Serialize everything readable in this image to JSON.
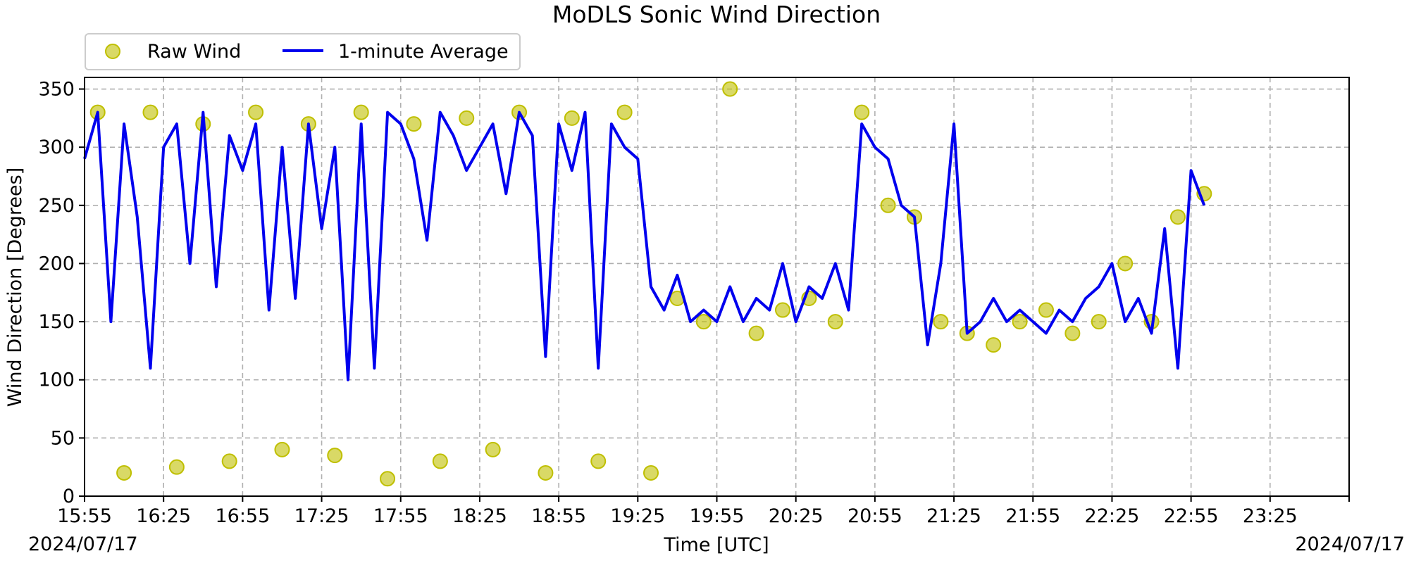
{
  "chart_data": {
    "type": "scatter",
    "title": "MoDLS Sonic Wind Direction",
    "xlabel": "Time [UTC]",
    "ylabel": "Wind Direction [Degrees]",
    "date_left": "2024/07/17",
    "date_right": "2024/07/17",
    "x_ticks": [
      "15:55",
      "16:25",
      "16:55",
      "17:25",
      "17:55",
      "18:25",
      "18:55",
      "19:25",
      "19:55",
      "20:25",
      "20:55",
      "21:25",
      "21:55",
      "22:25",
      "22:55",
      "23:25"
    ],
    "x_range": [
      "15:55",
      "23:55"
    ],
    "y_ticks": [
      0,
      50,
      100,
      150,
      200,
      250,
      300,
      350
    ],
    "ylim": [
      0,
      360
    ],
    "grid": true,
    "legend_position": "top-left, above plot",
    "series": [
      {
        "name": "Raw Wind",
        "style": "scatter",
        "color": "#bfbf00",
        "x": [
          "16:00",
          "16:10",
          "16:20",
          "16:30",
          "16:40",
          "16:50",
          "17:00",
          "17:10",
          "17:20",
          "17:30",
          "17:40",
          "17:50",
          "18:00",
          "18:10",
          "18:20",
          "18:30",
          "18:40",
          "18:50",
          "19:00",
          "19:10",
          "19:20",
          "19:30",
          "19:40",
          "19:50",
          "20:00",
          "20:10",
          "20:20",
          "20:30",
          "20:40",
          "20:50",
          "21:00",
          "21:10",
          "21:20",
          "21:30",
          "21:40",
          "21:50",
          "22:00",
          "22:10",
          "22:20",
          "22:30",
          "22:40",
          "22:50",
          "23:00"
        ],
        "y": [
          330,
          20,
          330,
          25,
          320,
          30,
          330,
          40,
          320,
          35,
          330,
          15,
          320,
          30,
          325,
          40,
          330,
          20,
          325,
          30,
          330,
          20,
          170,
          150,
          350,
          140,
          160,
          170,
          150,
          330,
          250,
          240,
          150,
          140,
          130,
          150,
          160,
          140,
          150,
          200,
          150,
          240,
          260
        ]
      },
      {
        "name": "1-minute Average",
        "style": "line",
        "color": "#0000ee",
        "x": [
          "15:55",
          "16:00",
          "16:05",
          "16:10",
          "16:15",
          "16:20",
          "16:25",
          "16:30",
          "16:35",
          "16:40",
          "16:45",
          "16:50",
          "16:55",
          "17:00",
          "17:05",
          "17:10",
          "17:15",
          "17:20",
          "17:25",
          "17:30",
          "17:35",
          "17:40",
          "17:45",
          "17:50",
          "17:55",
          "18:00",
          "18:05",
          "18:10",
          "18:15",
          "18:20",
          "18:25",
          "18:30",
          "18:35",
          "18:40",
          "18:45",
          "18:50",
          "18:55",
          "19:00",
          "19:05",
          "19:10",
          "19:15",
          "19:20",
          "19:25",
          "19:30",
          "19:35",
          "19:40",
          "19:45",
          "19:50",
          "19:55",
          "20:00",
          "20:05",
          "20:10",
          "20:15",
          "20:20",
          "20:25",
          "20:30",
          "20:35",
          "20:40",
          "20:45",
          "20:50",
          "20:55",
          "21:00",
          "21:05",
          "21:10",
          "21:15",
          "21:20",
          "21:25",
          "21:30",
          "21:35",
          "21:40",
          "21:45",
          "21:50",
          "21:55",
          "22:00",
          "22:05",
          "22:10",
          "22:15",
          "22:20",
          "22:25",
          "22:30",
          "22:35",
          "22:40",
          "22:45",
          "22:50",
          "22:55",
          "23:00"
        ],
        "y": [
          290,
          330,
          150,
          320,
          240,
          110,
          300,
          320,
          200,
          330,
          180,
          310,
          280,
          320,
          160,
          300,
          170,
          320,
          230,
          300,
          100,
          320,
          110,
          330,
          320,
          290,
          220,
          330,
          310,
          280,
          300,
          320,
          260,
          330,
          310,
          120,
          320,
          280,
          330,
          110,
          320,
          300,
          290,
          180,
          160,
          190,
          150,
          160,
          150,
          180,
          150,
          170,
          160,
          200,
          150,
          180,
          170,
          200,
          160,
          320,
          300,
          290,
          250,
          240,
          130,
          200,
          320,
          140,
          150,
          170,
          150,
          160,
          150,
          140,
          160,
          150,
          170,
          180,
          200,
          150,
          170,
          140,
          230,
          110,
          280,
          250
        ]
      }
    ]
  }
}
